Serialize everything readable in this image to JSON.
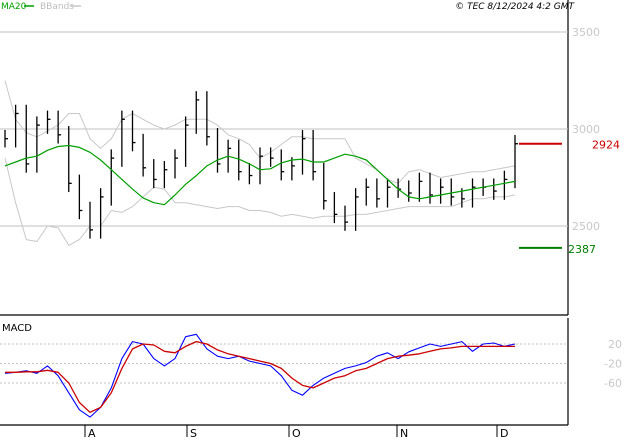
{
  "header": {
    "legend_ma": "MA20",
    "legend_bbands": "BBands",
    "timestamp": "© TEC 8/12/2024 4:2 GMT"
  },
  "colors": {
    "price": "#000000",
    "ma20": "#00a000",
    "bbands": "#c8c8c8",
    "grid": "#c0c0c0",
    "macd": "#0000ff",
    "signal": "#cc0000",
    "resistance": "#cc0000",
    "support": "#008000"
  },
  "chart_data": [
    {
      "type": "line",
      "panel": "price",
      "xlabel": "",
      "ylabel": "",
      "x_ticks": [
        "A",
        "S",
        "O",
        "N",
        "D"
      ],
      "y_ticks": [
        "3500",
        "3000",
        "2500"
      ],
      "ylim": [
        1950,
        3620
      ],
      "grid": true,
      "levels": [
        {
          "name": "resistance",
          "value": 2924,
          "label": "2924"
        },
        {
          "name": "support",
          "value": 2387,
          "label": "2387"
        }
      ],
      "series": [
        {
          "name": "MA20",
          "values": [
            2810,
            2830,
            2850,
            2860,
            2890,
            2910,
            2915,
            2905,
            2880,
            2840,
            2790,
            2740,
            2690,
            2645,
            2620,
            2610,
            2660,
            2715,
            2760,
            2810,
            2840,
            2860,
            2845,
            2820,
            2790,
            2795,
            2825,
            2840,
            2845,
            2830,
            2830,
            2850,
            2870,
            2860,
            2840,
            2790,
            2740,
            2690,
            2650,
            2640,
            2650,
            2660,
            2670,
            2680,
            2690,
            2700,
            2710,
            2720,
            2730
          ]
        },
        {
          "name": "BBands upper",
          "values": [
            3250,
            3050,
            2980,
            2960,
            2990,
            3020,
            3080,
            3080,
            2950,
            2900,
            2950,
            3050,
            3080,
            3050,
            3020,
            3000,
            3020,
            3050,
            3050,
            3050,
            3020,
            2970,
            2950,
            2920,
            2850,
            2880,
            2920,
            2960,
            2960,
            2950,
            2950,
            2950,
            2950,
            2850,
            2820,
            2790,
            2740,
            2720,
            2780,
            2790,
            2770,
            2750,
            2760,
            2770,
            2780,
            2780,
            2790,
            2800,
            2810
          ]
        },
        {
          "name": "BBands lower",
          "values": [
            2850,
            2620,
            2430,
            2420,
            2500,
            2490,
            2400,
            2430,
            2500,
            2500,
            2580,
            2570,
            2600,
            2650,
            2700,
            2690,
            2620,
            2620,
            2610,
            2600,
            2590,
            2600,
            2600,
            2580,
            2580,
            2570,
            2550,
            2560,
            2550,
            2540,
            2550,
            2550,
            2550,
            2560,
            2560,
            2570,
            2580,
            2590,
            2600,
            2600,
            2600,
            2600,
            2600,
            2620,
            2640,
            2640,
            2650,
            2650,
            2660
          ]
        },
        {
          "name": "Close",
          "values": [
            2950,
            3080,
            2820,
            3020,
            3050,
            2970,
            2720,
            2580,
            2480,
            2650,
            2850,
            3050,
            2930,
            2800,
            2740,
            2790,
            2850,
            3020,
            3150,
            2960,
            2820,
            2900,
            2780,
            2760,
            2860,
            2850,
            2780,
            2810,
            2950,
            2780,
            2630,
            2560,
            2520,
            2650,
            2700,
            2640,
            2700,
            2690,
            2670,
            2730,
            2660,
            2700,
            2650,
            2640,
            2700,
            2700,
            2680,
            2740,
            2924
          ]
        }
      ]
    },
    {
      "type": "line",
      "panel": "macd",
      "title": "MACD",
      "xlabel": "",
      "ylabel": "",
      "y_ticks": [
        "20",
        "-20",
        "-60"
      ],
      "ylim": [
        -160,
        62
      ],
      "grid": true,
      "series": [
        {
          "name": "MACD",
          "values": [
            -40,
            -38,
            -35,
            -40,
            -25,
            -45,
            -80,
            -115,
            -130,
            -110,
            -70,
            -10,
            25,
            20,
            -10,
            -25,
            -10,
            35,
            40,
            10,
            -5,
            -10,
            -5,
            -15,
            -20,
            -25,
            -45,
            -75,
            -85,
            -65,
            -50,
            -40,
            -30,
            -25,
            -18,
            -5,
            2,
            -10,
            4,
            12,
            20,
            15,
            20,
            25,
            5,
            20,
            22,
            15,
            20
          ]
        },
        {
          "name": "Signal",
          "values": [
            -38,
            -38,
            -37,
            -37,
            -34,
            -38,
            -60,
            -100,
            -120,
            -110,
            -80,
            -30,
            10,
            20,
            18,
            5,
            2,
            15,
            25,
            20,
            8,
            0,
            -5,
            -10,
            -15,
            -20,
            -30,
            -50,
            -65,
            -70,
            -60,
            -50,
            -45,
            -35,
            -30,
            -20,
            -10,
            -5,
            -3,
            0,
            5,
            10,
            12,
            15,
            15,
            15,
            15,
            15,
            15
          ]
        }
      ]
    }
  ]
}
